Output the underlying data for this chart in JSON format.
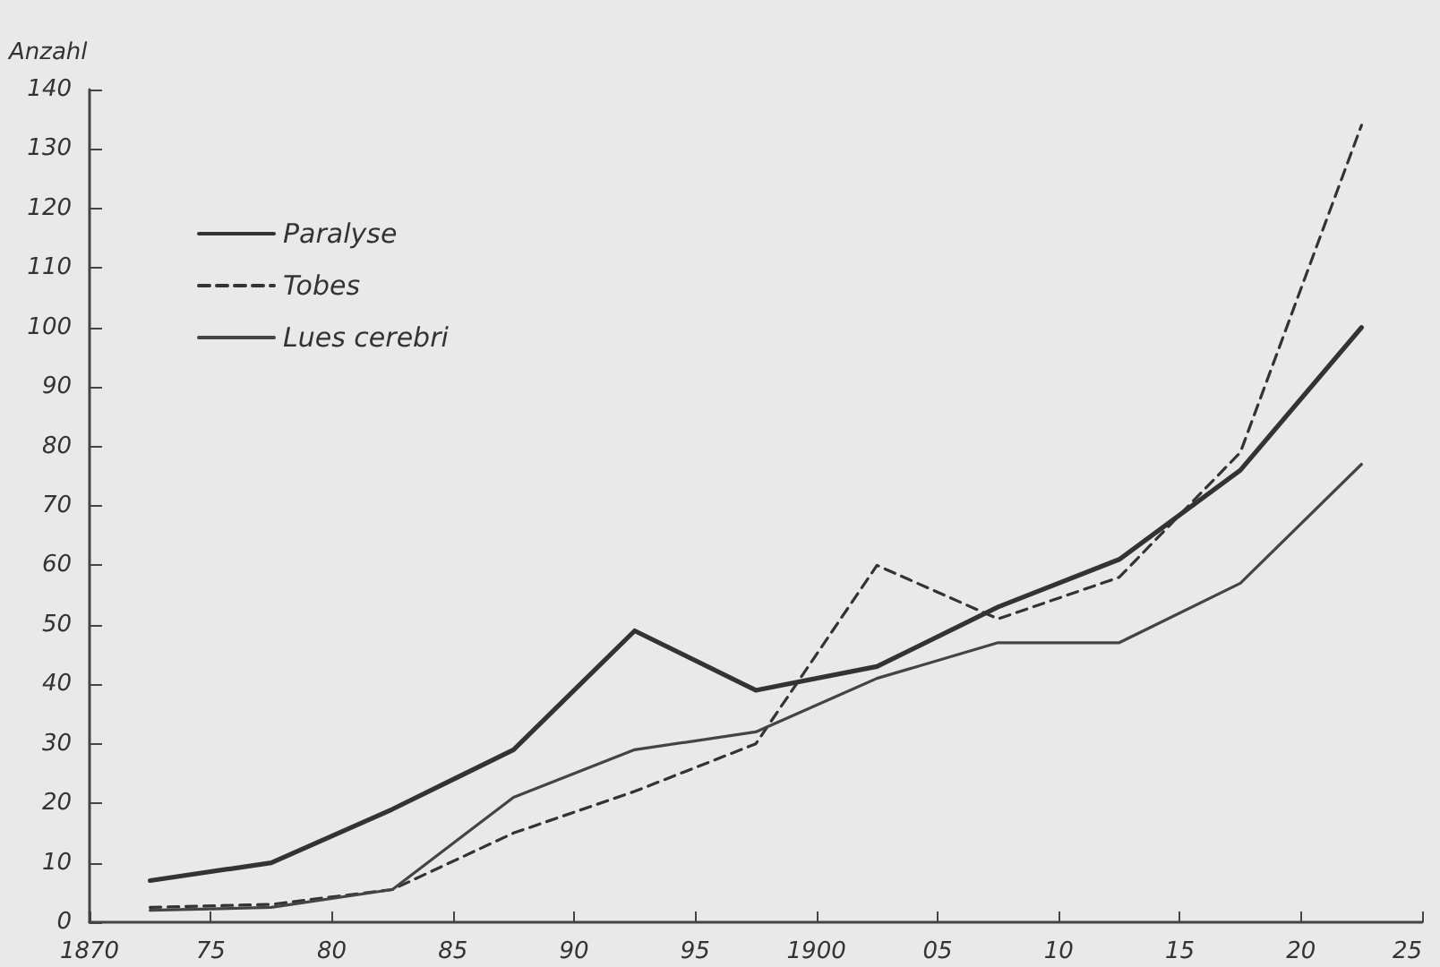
{
  "chart_data": {
    "type": "line",
    "ylabel": "Anzahl",
    "x": [
      1872.5,
      1877.5,
      1882.5,
      1887.5,
      1892.5,
      1897.5,
      1902.5,
      1907.5,
      1912.5,
      1917.5,
      1922.5
    ],
    "series": [
      {
        "name": "Paralyse",
        "color": "#333333",
        "line_style": "solid",
        "values": [
          7,
          10,
          19,
          29,
          49,
          39,
          43,
          53,
          61,
          76,
          100
        ]
      },
      {
        "name": "Tobes",
        "color": "#333333",
        "line_style": "dashed",
        "values": [
          2.5,
          3,
          5.5,
          15,
          22,
          30,
          60,
          51,
          58,
          79,
          134
        ]
      },
      {
        "name": "Lues cerebri",
        "color": "#444444",
        "line_style": "solid",
        "values": [
          2,
          2.5,
          5.5,
          21,
          29,
          32,
          41,
          47,
          47,
          57,
          77
        ]
      }
    ],
    "xlim": [
      1870,
      1925
    ],
    "xticks": [
      {
        "value": 1870,
        "label": "1870"
      },
      {
        "value": 1875,
        "label": "75"
      },
      {
        "value": 1880,
        "label": "80"
      },
      {
        "value": 1885,
        "label": "85"
      },
      {
        "value": 1890,
        "label": "90"
      },
      {
        "value": 1895,
        "label": "95"
      },
      {
        "value": 1900,
        "label": "1900"
      },
      {
        "value": 1905,
        "label": "05"
      },
      {
        "value": 1910,
        "label": "10"
      },
      {
        "value": 1915,
        "label": "15"
      },
      {
        "value": 1920,
        "label": "20"
      },
      {
        "value": 1925,
        "label": "25"
      }
    ],
    "ylim": [
      0,
      140
    ],
    "yticks": [
      0,
      10,
      20,
      30,
      40,
      50,
      60,
      70,
      80,
      90,
      100,
      110,
      120,
      130,
      140
    ],
    "grid": false,
    "legend": "top left",
    "marker": "none"
  }
}
